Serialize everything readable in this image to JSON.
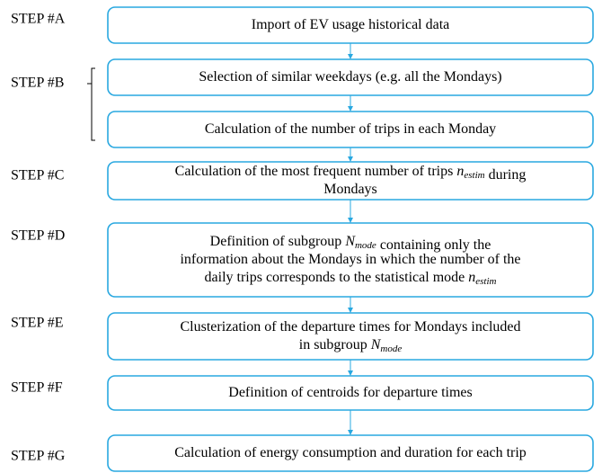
{
  "steps": [
    {
      "label": "STEP #A",
      "boxes": [
        {
          "lines": [
            [
              "Import of EV usage historical data"
            ]
          ]
        }
      ]
    },
    {
      "label": "STEP #B",
      "boxes": [
        {
          "lines": [
            [
              "Selection of similar weekdays (e.g. all the Mondays)"
            ]
          ]
        },
        {
          "lines": [
            [
              "Calculation of the number of trips in each Monday"
            ]
          ]
        }
      ]
    },
    {
      "label": "STEP #C",
      "boxes": [
        {
          "lines": [
            [
              "Calculation of the most frequent number of trips ",
              {
                "var": "n",
                "sub": "estim"
              },
              " during"
            ],
            [
              "Mondays"
            ]
          ]
        }
      ]
    },
    {
      "label": "STEP #D",
      "boxes": [
        {
          "lines": [
            [
              "Definition of subgroup ",
              {
                "var": "N",
                "sub": "mode"
              },
              " containing only the"
            ],
            [
              "information about the Mondays in which the number of the"
            ],
            [
              "daily trips corresponds to the statistical mode ",
              {
                "var": "n",
                "sub": "estim"
              }
            ]
          ]
        }
      ]
    },
    {
      "label": "STEP #E",
      "boxes": [
        {
          "lines": [
            [
              "Clusterization of the departure times for Mondays included"
            ],
            [
              "in subgroup ",
              {
                "var": "N",
                "sub": "mode"
              }
            ]
          ]
        }
      ]
    },
    {
      "label": "STEP #F",
      "boxes": [
        {
          "lines": [
            [
              "Definition of centroids for departure times"
            ]
          ]
        }
      ]
    },
    {
      "label": "STEP #G",
      "boxes": [
        {
          "lines": [
            [
              "Calculation of energy consumption and duration for each trip"
            ]
          ]
        }
      ]
    }
  ]
}
